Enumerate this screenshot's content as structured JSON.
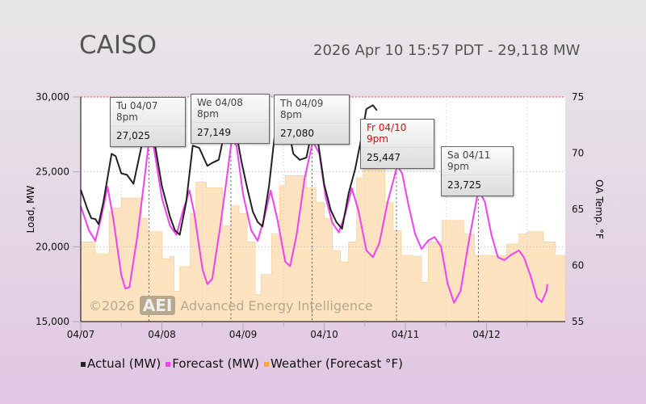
{
  "header": {
    "title": "CAISO",
    "subtitle": "2026 Apr 10 15:57 PDT - 29,118 MW"
  },
  "chart_data": {
    "type": "line",
    "title": "CAISO",
    "xlabel": "",
    "ylabel": "Load, MW",
    "y2label": "OA Temp. °F",
    "x_unit": "days since 04/07 00:00",
    "xlim": [
      0,
      5.97
    ],
    "ylim": [
      15000,
      30000
    ],
    "y2lim": [
      55,
      75
    ],
    "xticks": [
      "04/07",
      "04/08",
      "04/09",
      "04/10",
      "04/11",
      "04/12"
    ],
    "yticks": [
      "15,000",
      "20,000",
      "25,000",
      "30,000"
    ],
    "y2ticks": [
      "55",
      "60",
      "65",
      "70",
      "75"
    ],
    "colors": {
      "actual": "#222222",
      "forecast": "#f040f0",
      "weather": "#fde3c0",
      "weather_edge": "#f8c888"
    },
    "series": [
      {
        "name": "Actual (MW)",
        "points": [
          [
            0,
            23800
          ],
          [
            0.08,
            22550
          ],
          [
            0.13,
            21900
          ],
          [
            0.18,
            21850
          ],
          [
            0.22,
            21500
          ],
          [
            0.28,
            23000
          ],
          [
            0.38,
            26200
          ],
          [
            0.43,
            26050
          ],
          [
            0.5,
            24900
          ],
          [
            0.57,
            24800
          ],
          [
            0.65,
            24200
          ],
          [
            0.75,
            26750
          ],
          [
            0.84,
            27850
          ],
          [
            0.9,
            27300
          ],
          [
            1.0,
            24050
          ],
          [
            1.1,
            22000
          ],
          [
            1.16,
            21100
          ],
          [
            1.22,
            20800
          ],
          [
            1.3,
            23000
          ],
          [
            1.38,
            26750
          ],
          [
            1.46,
            26600
          ],
          [
            1.56,
            25400
          ],
          [
            1.62,
            25600
          ],
          [
            1.7,
            25800
          ],
          [
            1.78,
            27850
          ],
          [
            1.85,
            28650
          ],
          [
            1.9,
            28100
          ],
          [
            1.98,
            25700
          ],
          [
            2.05,
            23950
          ],
          [
            2.12,
            22350
          ],
          [
            2.18,
            21650
          ],
          [
            2.24,
            21350
          ],
          [
            2.32,
            24050
          ],
          [
            2.4,
            27950
          ],
          [
            2.48,
            28900
          ],
          [
            2.54,
            28400
          ],
          [
            2.62,
            26200
          ],
          [
            2.7,
            25800
          ],
          [
            2.78,
            25950
          ],
          [
            2.85,
            27750
          ],
          [
            2.92,
            27150
          ],
          [
            3.0,
            24150
          ],
          [
            3.08,
            22450
          ],
          [
            3.15,
            21650
          ],
          [
            3.22,
            21200
          ],
          [
            3.3,
            23550
          ],
          [
            3.38,
            25150
          ],
          [
            3.45,
            27050
          ],
          [
            3.52,
            29200
          ],
          [
            3.6,
            29450
          ],
          [
            3.65,
            29100
          ]
        ]
      },
      {
        "name": "Forecast (MW)",
        "points": [
          [
            0,
            22700
          ],
          [
            0.1,
            21100
          ],
          [
            0.18,
            20400
          ],
          [
            0.25,
            21900
          ],
          [
            0.33,
            24000
          ],
          [
            0.4,
            21900
          ],
          [
            0.5,
            18100
          ],
          [
            0.55,
            17200
          ],
          [
            0.6,
            17300
          ],
          [
            0.7,
            20800
          ],
          [
            0.78,
            24300
          ],
          [
            0.84,
            27050
          ],
          [
            0.9,
            26650
          ],
          [
            1.0,
            23250
          ],
          [
            1.1,
            21400
          ],
          [
            1.18,
            20800
          ],
          [
            1.26,
            22400
          ],
          [
            1.34,
            23750
          ],
          [
            1.4,
            22200
          ],
          [
            1.5,
            18500
          ],
          [
            1.56,
            17500
          ],
          [
            1.62,
            17850
          ],
          [
            1.72,
            21400
          ],
          [
            1.8,
            24600
          ],
          [
            1.86,
            27150
          ],
          [
            1.92,
            26750
          ],
          [
            2.0,
            23500
          ],
          [
            2.1,
            21100
          ],
          [
            2.18,
            20400
          ],
          [
            2.26,
            21900
          ],
          [
            2.34,
            23750
          ],
          [
            2.42,
            21900
          ],
          [
            2.52,
            19000
          ],
          [
            2.58,
            18700
          ],
          [
            2.66,
            20800
          ],
          [
            2.76,
            24600
          ],
          [
            2.86,
            27050
          ],
          [
            2.94,
            26200
          ],
          [
            3.02,
            23250
          ],
          [
            3.1,
            21600
          ],
          [
            3.18,
            20950
          ],
          [
            3.26,
            22200
          ],
          [
            3.34,
            23900
          ],
          [
            3.42,
            22450
          ],
          [
            3.52,
            19750
          ],
          [
            3.6,
            19300
          ],
          [
            3.68,
            20250
          ],
          [
            3.78,
            22950
          ],
          [
            3.9,
            25400
          ],
          [
            3.96,
            24900
          ],
          [
            4.04,
            22750
          ],
          [
            4.12,
            20850
          ],
          [
            4.2,
            19850
          ],
          [
            4.28,
            20400
          ],
          [
            4.36,
            20650
          ],
          [
            4.44,
            20000
          ],
          [
            4.52,
            17550
          ],
          [
            4.6,
            16250
          ],
          [
            4.68,
            17050
          ],
          [
            4.78,
            20300
          ],
          [
            4.9,
            23800
          ],
          [
            4.98,
            23000
          ],
          [
            5.06,
            20800
          ],
          [
            5.14,
            19300
          ],
          [
            5.22,
            19100
          ],
          [
            5.3,
            19450
          ],
          [
            5.4,
            19750
          ],
          [
            5.46,
            19300
          ],
          [
            5.54,
            18100
          ],
          [
            5.62,
            16600
          ],
          [
            5.68,
            16300
          ],
          [
            5.74,
            17050
          ],
          [
            5.75,
            17500
          ]
        ]
      },
      {
        "name": "Weather (Forecast °F)",
        "axis": "right",
        "steps": [
          [
            0,
            62.1
          ],
          [
            0.18,
            61.0
          ],
          [
            0.35,
            64.8
          ],
          [
            0.4,
            65.1
          ],
          [
            0.5,
            66.0
          ],
          [
            0.75,
            64.2
          ],
          [
            0.82,
            63.0
          ],
          [
            1.0,
            60.6
          ],
          [
            1.1,
            60.8
          ],
          [
            1.15,
            57.7
          ],
          [
            1.22,
            59.9
          ],
          [
            1.35,
            64.6
          ],
          [
            1.42,
            67.4
          ],
          [
            1.55,
            66.9
          ],
          [
            1.75,
            63.5
          ],
          [
            1.85,
            65.3
          ],
          [
            1.95,
            64.6
          ],
          [
            2.05,
            62.1
          ],
          [
            2.15,
            57.4
          ],
          [
            2.22,
            59.2
          ],
          [
            2.35,
            62.8
          ],
          [
            2.45,
            67.1
          ],
          [
            2.52,
            68.0
          ],
          [
            2.78,
            66.9
          ],
          [
            2.9,
            65.6
          ],
          [
            3.0,
            64.2
          ],
          [
            3.1,
            61.3
          ],
          [
            3.2,
            60.3
          ],
          [
            3.3,
            62.1
          ],
          [
            3.4,
            67.8
          ],
          [
            3.48,
            68.7
          ],
          [
            3.55,
            69.6
          ],
          [
            3.65,
            68.9
          ],
          [
            3.75,
            65.6
          ],
          [
            3.85,
            63.1
          ],
          [
            3.95,
            60.9
          ],
          [
            4.1,
            60.8
          ],
          [
            4.2,
            58.5
          ],
          [
            4.28,
            62.1
          ],
          [
            4.45,
            64.0
          ],
          [
            4.72,
            62.8
          ],
          [
            4.85,
            60.9
          ],
          [
            5.25,
            61.9
          ],
          [
            5.4,
            62.8
          ],
          [
            5.5,
            63.0
          ],
          [
            5.7,
            62.1
          ],
          [
            5.85,
            60.9
          ],
          [
            5.97,
            60.9
          ]
        ]
      }
    ],
    "tooltips": [
      {
        "label": "Tu 04/07 8pm",
        "value": "27,025",
        "day": 0.84,
        "mw": 27025
      },
      {
        "label": "We 04/08 8pm",
        "value": "27,149",
        "day": 1.85,
        "mw": 27149
      },
      {
        "label": "Th 04/09 8pm",
        "value": "27,080",
        "day": 2.85,
        "mw": 27080
      },
      {
        "label": "Fr 04/10 9pm",
        "label_prefix": "Fr ",
        "label_rest": "04/10 9pm",
        "value": "25,447",
        "day": 3.89,
        "mw": 25447,
        "highlight": "#ee0000"
      },
      {
        "label": "Sa 04/11 9pm",
        "value": "23,725",
        "day": 4.9,
        "mw": 23725
      }
    ],
    "legend": [
      "Actual (MW)",
      "Forecast (MW)",
      "Weather (Forecast °F)"
    ],
    "legend_placement": "bottom"
  },
  "watermark": {
    "year": "©2026",
    "logo": "AEI",
    "text": "Advanced Energy Intelligence"
  }
}
